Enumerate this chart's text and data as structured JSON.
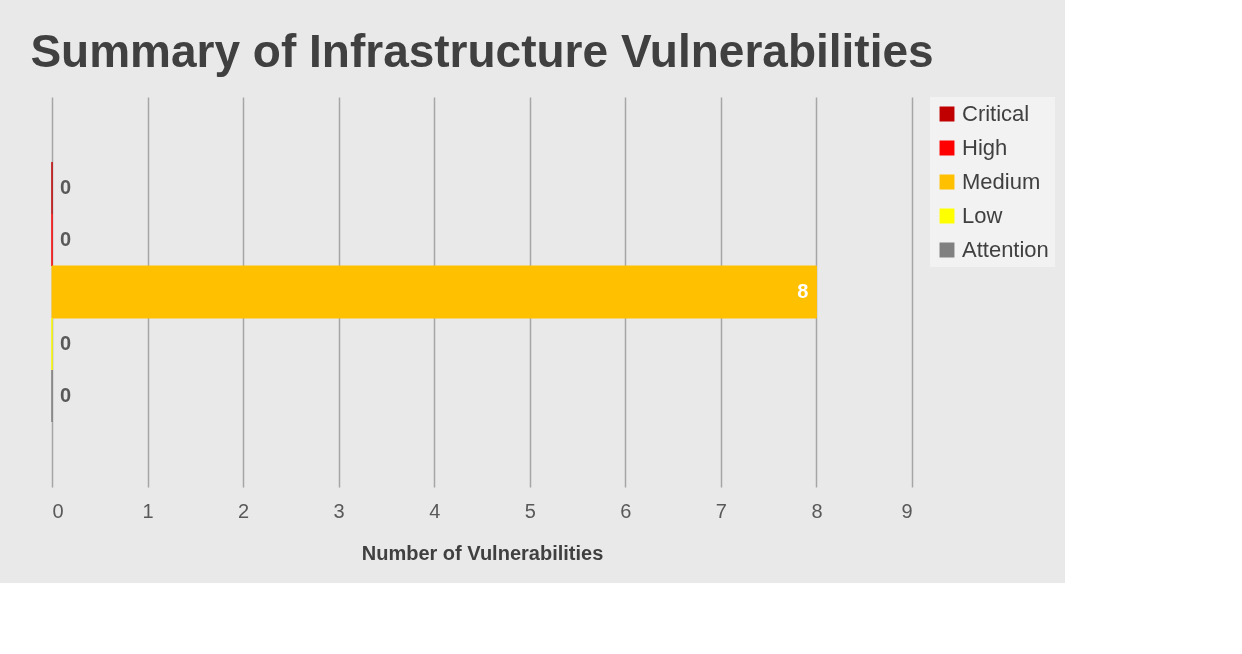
{
  "chart_data": {
    "type": "bar",
    "title": "Summary of Infrastructure Vulnerabilities",
    "xlabel": "Number of Vulnerabilities",
    "orientation": "horizontal",
    "categories": [
      null
    ],
    "series": [
      {
        "name": "Critical",
        "color": "#c00000",
        "values": [
          0
        ]
      },
      {
        "name": "High",
        "color": "#ff0000",
        "values": [
          0
        ]
      },
      {
        "name": "Medium",
        "color": "#ffc000",
        "values": [
          8
        ]
      },
      {
        "name": "Low",
        "color": "#ffff00",
        "values": [
          0
        ]
      },
      {
        "name": "Attention",
        "color": "#808080",
        "values": [
          0
        ]
      }
    ],
    "xlim": [
      0,
      9
    ],
    "xticks": [
      0,
      1,
      2,
      3,
      4,
      5,
      6,
      7,
      8,
      9
    ],
    "grid": "x",
    "legend": "right",
    "data_labels": true
  }
}
